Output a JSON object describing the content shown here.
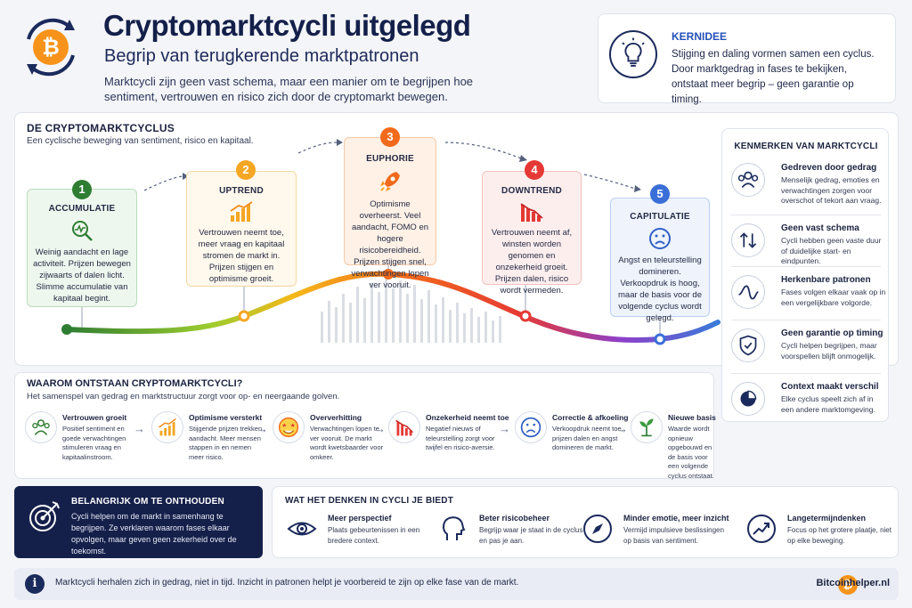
{
  "header": {
    "title": "Cryptomarktcycli uitgelegd",
    "subtitle": "Begrip van terugkerende marktpatronen",
    "intro": "Marktcycli zijn geen vast schema, maar een manier om te begrijpen hoe sentiment, vertrouwen en risico zich door de cryptomarkt bewegen.",
    "logo_icon": "bitcoin-cycle-icon"
  },
  "kernidee": {
    "title": "KERNIDEE",
    "text": "Stijging en daling vormen samen een cyclus. Door marktgedrag in fases te bekijken, ontstaat meer begrip – geen garantie op timing.",
    "icon": "lightbulb-icon"
  },
  "cycle": {
    "title": "DE CRYPTOMARKTCYCLUS",
    "subtitle": "Een cyclische beweging van sentiment, risico en kapitaal.",
    "phases": [
      {
        "num": "1",
        "title": "ACCUMULATIE",
        "text": "Weinig aandacht en lage activiteit. Prijzen bewegen zijwaarts of dalen licht. Slimme accumulatie van kapitaal begint.",
        "color": "#2e7d32",
        "icon": "magnifier-chart-icon"
      },
      {
        "num": "2",
        "title": "UPTREND",
        "text": "Vertrouwen neemt toe, meer vraag en kapitaal stromen de markt in. Prijzen stijgen en optimisme groeit.",
        "color": "#f5a623",
        "icon": "bar-chart-up-icon"
      },
      {
        "num": "3",
        "title": "EUPHORIE",
        "text": "Optimisme overheerst. Veel aandacht, FOMO en hogere risicobereidheid. Prijzen stijgen snel, verwachtingen lopen ver vooruit.",
        "color": "#f26a1b",
        "icon": "rocket-icon"
      },
      {
        "num": "4",
        "title": "DOWNTREND",
        "text": "Vertrouwen neemt af, winsten worden genomen en onzekerheid groeit. Prijzen dalen, risico wordt vermeden.",
        "color": "#e53935",
        "icon": "bar-chart-down-icon"
      },
      {
        "num": "5",
        "title": "CAPITULATIE",
        "text": "Angst en teleurstelling domineren. Verkoopdruk is hoog, maar de basis voor de volgende cyclus wordt gelegd.",
        "color": "#3a6fd8",
        "icon": "sad-face-icon"
      }
    ]
  },
  "kenmerken": {
    "title": "KENMERKEN VAN MARKTCYCLI",
    "items": [
      {
        "title": "Gedreven door gedrag",
        "text": "Menselijk gedrag, emoties en verwachtingen zorgen voor overschot of tekort aan vraag.",
        "icon": "people-group-icon"
      },
      {
        "title": "Geen vast schema",
        "text": "Cycli hebben geen vaste duur of duidelijke start- en eindpunten.",
        "icon": "up-down-arrows-icon"
      },
      {
        "title": "Herkenbare patronen",
        "text": "Fases volgen elkaar vaak op in een vergelijkbare volgorde.",
        "icon": "wave-line-icon"
      },
      {
        "title": "Geen garantie op timing",
        "text": "Cycli helpen begrijpen, maar voorspellen blijft onmogelijk.",
        "icon": "shield-check-icon"
      },
      {
        "title": "Context maakt verschil",
        "text": "Elke cyclus speelt zich af in een andere marktomgeving.",
        "icon": "pie-chart-icon"
      }
    ]
  },
  "waarom": {
    "title": "WAAROM ONTSTAAN CRYPTOMARKTCYCLI?",
    "subtitle": "Het samenspel van gedrag en marktstructuur zorgt voor op- en neergaande golven.",
    "steps": [
      {
        "title": "Vertrouwen groeit",
        "text": "Positief sentiment en goede verwachtingen stimuleren vraag en kapitaalinstroom.",
        "icon": "people-icon"
      },
      {
        "title": "Optimisme versterkt",
        "text": "Stijgende prijzen trekken aandacht. Meer mensen stappen in en nemen meer risico.",
        "icon": "growth-chart-icon"
      },
      {
        "title": "Oververhitting",
        "text": "Verwachtingen lopen te ver vooruit. De markt wordt kwetsbaarder voor omkeer.",
        "icon": "star-eyes-face-icon"
      },
      {
        "title": "Onzekerheid neemt toe",
        "text": "Negatief nieuws of teleurstelling zorgt voor twijfel en risico-aversie.",
        "icon": "decline-chart-icon"
      },
      {
        "title": "Correctie & afkoeling",
        "text": "Verkoopdruk neemt toe, prijzen dalen en angst domineren de markt.",
        "icon": "worried-face-icon"
      },
      {
        "title": "Nieuwe basis",
        "text": "Waarde wordt opnieuw opgebouwd en de basis voor een volgende cyclus ontstaat.",
        "icon": "sprout-icon"
      }
    ]
  },
  "belangrijk": {
    "title": "BELANGRIJK OM TE ONTHOUDEN",
    "text": "Cycli helpen om de markt in samenhang te begrijpen. Ze verklaren waarom fases elkaar opvolgen, maar geven geen zekerheid over de toekomst.",
    "icon": "target-icon"
  },
  "denken": {
    "title": "WAT HET DENKEN IN CYCLI JE BIEDT",
    "items": [
      {
        "title": "Meer perspectief",
        "text": "Plaats gebeurtenissen in een bredere context.",
        "icon": "eye-icon"
      },
      {
        "title": "Beter risicobeheer",
        "text": "Begrijp waar je staat in de cyclus en pas je aan.",
        "icon": "head-icon"
      },
      {
        "title": "Minder emotie, meer inzicht",
        "text": "Vermijd impulsieve beslissingen op basis van sentiment.",
        "icon": "compass-icon"
      },
      {
        "title": "Langetermijndenken",
        "text": "Focus op het grotere plaatje, niet op elke beweging.",
        "icon": "trend-up-icon"
      }
    ]
  },
  "footer": {
    "text": "Marktcycli herhalen zich in gedrag, niet in tijd. Inzicht in patronen helpt je voorbereid te zijn op elke fase van de markt.",
    "site": "Bitcoinhelper.nl",
    "info_glyph": "i",
    "btc_glyph": "₿"
  },
  "colors": {
    "navy": "#14204a",
    "accent_blue": "#2450b8",
    "bitcoin_orange": "#f7931a"
  }
}
